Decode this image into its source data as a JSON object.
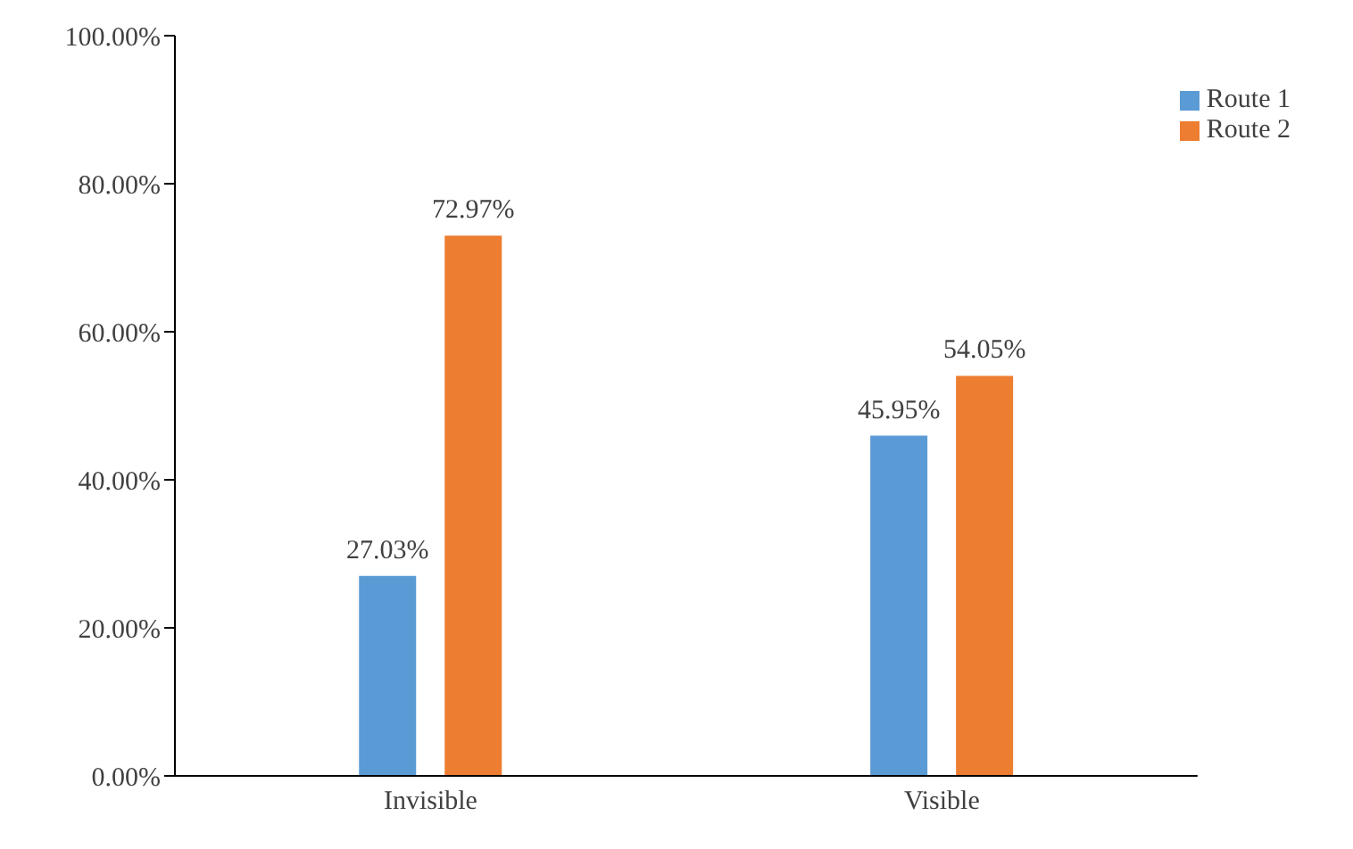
{
  "chart_data": {
    "type": "bar",
    "categories": [
      "Invisible",
      "Visible"
    ],
    "series": [
      {
        "name": "Route 1",
        "color": "#5b9bd5",
        "values": [
          27.03,
          45.95
        ],
        "value_labels": [
          "27.03%",
          "45.95%"
        ]
      },
      {
        "name": "Route 2",
        "color": "#ed7d31",
        "values": [
          72.97,
          54.05
        ],
        "value_labels": [
          "72.97%",
          "54.05%"
        ]
      }
    ],
    "ylim": [
      0,
      100
    ],
    "yticks": [
      {
        "value": 0,
        "label": "0.00%"
      },
      {
        "value": 20,
        "label": "20.00%"
      },
      {
        "value": 40,
        "label": "40.00%"
      },
      {
        "value": 60,
        "label": "60.00%"
      },
      {
        "value": 80,
        "label": "80.00%"
      },
      {
        "value": 100,
        "label": "100.00%"
      }
    ],
    "grid": false,
    "legend": "top right"
  }
}
